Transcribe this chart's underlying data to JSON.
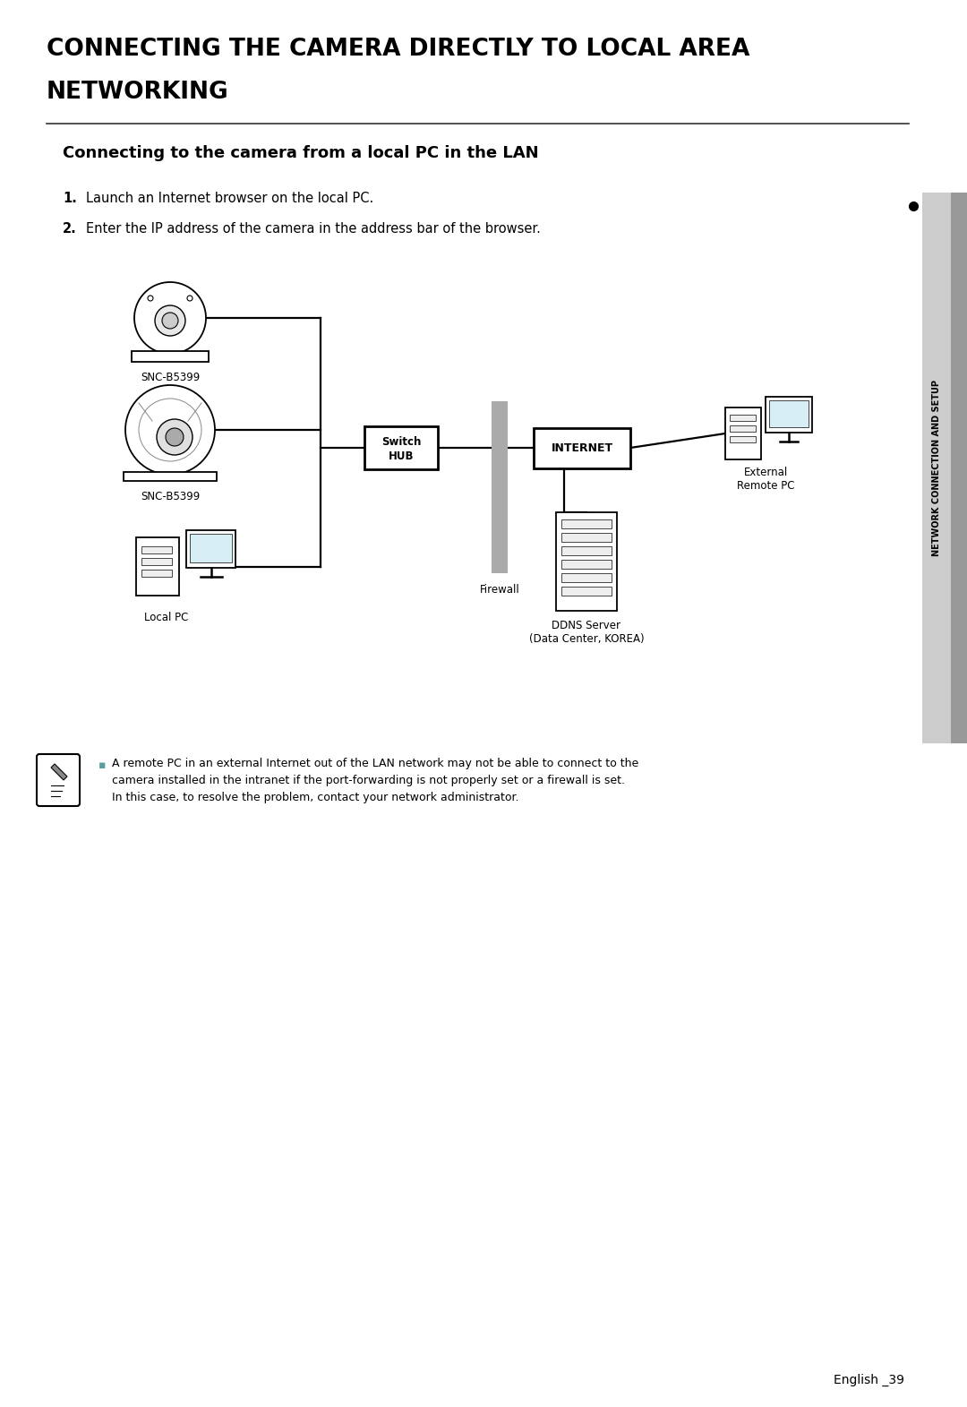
{
  "title_line1": "CONNECTING THE CAMERA DIRECTLY TO LOCAL AREA",
  "title_line2": "NETWORKING",
  "subtitle": "Connecting to the camera from a local PC in the LAN",
  "step1": "Launch an Internet browser on the local PC.",
  "step2": "Enter the IP address of the camera in the address bar of the browser.",
  "label_snc1": "SNC-B5399",
  "label_snc2": "SNC-B5399",
  "label_switch": "Switch\nHUB",
  "label_internet": "INTERNET",
  "label_firewall": "Firewall",
  "label_external": "External\nRemote PC",
  "label_localpc": "Local PC",
  "label_ddns": "DDNS Server\n(Data Center, KOREA)",
  "note_line1": "A remote PC in an external Internet out of the LAN network may not be able to connect to the",
  "note_line2": "camera installed in the intranet if the port-forwarding is not properly set or a firewall is set.",
  "note_line3": "In this case, to resolve the problem, contact your network administrator.",
  "sidebar_text": "NETWORK CONNECTION AND SETUP",
  "page_num": "English _39",
  "bg_color": "#ffffff",
  "text_color": "#000000",
  "sidebar_bg": "#cccccc",
  "sidebar_dark": "#999999",
  "line_color": "#000000",
  "note_bullet_color": "#5a9ea0",
  "title_fontsize": 19,
  "subtitle_fontsize": 13,
  "step_fontsize": 10.5,
  "diagram_fontsize": 8.5,
  "note_fontsize": 9,
  "page_fontsize": 10
}
